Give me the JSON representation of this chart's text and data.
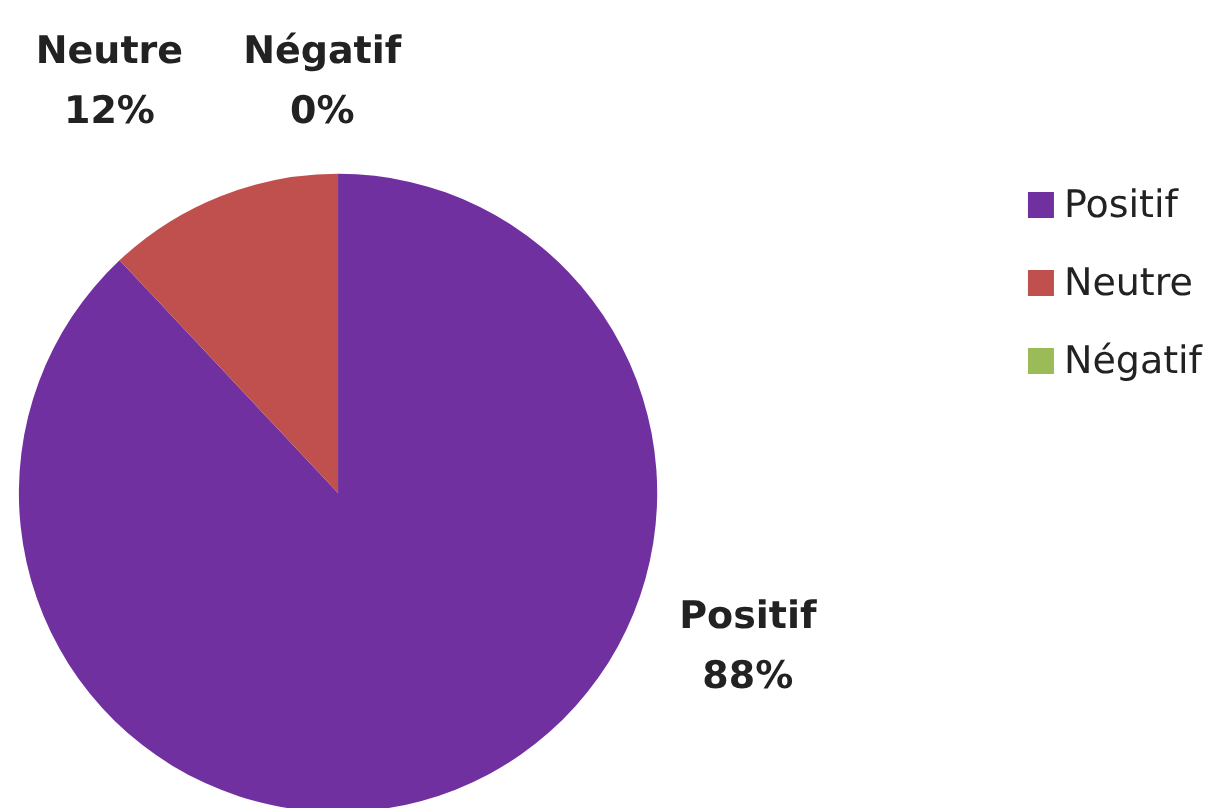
{
  "chart_data": {
    "type": "pie",
    "categories": [
      "Positif",
      "Neutre",
      "Négatif"
    ],
    "values": [
      88,
      12,
      0
    ],
    "colors": [
      "#7030a0",
      "#c0504d",
      "#9bbb59"
    ],
    "value_labels": [
      "88%",
      "12%",
      "0%"
    ],
    "legend": "right"
  }
}
